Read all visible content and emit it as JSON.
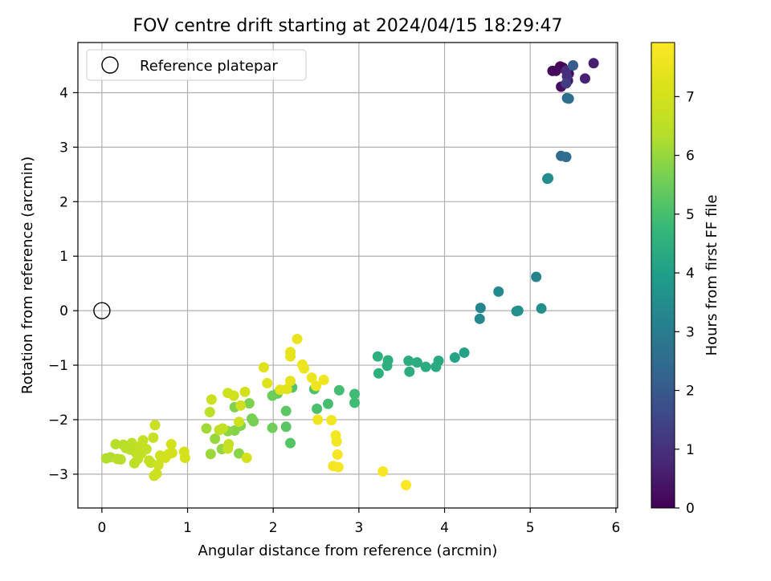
{
  "chart_data": {
    "type": "scatter",
    "title": "FOV centre drift starting at 2024/04/15 18:29:47",
    "xlabel": "Angular distance from reference (arcmin)",
    "ylabel": "Rotation from reference (arcmin)",
    "xlim": [
      -0.28,
      6.02
    ],
    "ylim": [
      -3.62,
      4.92
    ],
    "xticks": [
      "0",
      "1",
      "2",
      "3",
      "4",
      "5",
      "6"
    ],
    "yticks": [
      "−3",
      "−2",
      "−1",
      "0",
      "1",
      "2",
      "3",
      "4"
    ],
    "grid": true,
    "legend": {
      "placement": "top-left",
      "entries": [
        "Reference platepar"
      ]
    },
    "reference_point": {
      "x": 0,
      "y": 0
    },
    "colorbar": {
      "label": "Hours from first FF file",
      "range": [
        0,
        7.92
      ],
      "ticks": [
        "0",
        "1",
        "2",
        "3",
        "4",
        "5",
        "6",
        "7"
      ],
      "colormap": "viridis"
    },
    "points": [
      {
        "x": 5.35,
        "y": 4.48,
        "t": 0.05
      },
      {
        "x": 5.38,
        "y": 4.46,
        "t": 0.1
      },
      {
        "x": 5.26,
        "y": 4.4,
        "t": 0.15
      },
      {
        "x": 5.3,
        "y": 4.4,
        "t": 0.2
      },
      {
        "x": 5.45,
        "y": 4.35,
        "t": 0.25
      },
      {
        "x": 5.36,
        "y": 4.11,
        "t": 0.3
      },
      {
        "x": 5.44,
        "y": 4.22,
        "t": 0.35
      },
      {
        "x": 5.74,
        "y": 4.54,
        "t": 0.6
      },
      {
        "x": 5.64,
        "y": 4.26,
        "t": 0.7
      },
      {
        "x": 5.42,
        "y": 4.4,
        "t": 0.9
      },
      {
        "x": 5.43,
        "y": 4.3,
        "t": 1.0
      },
      {
        "x": 5.42,
        "y": 4.17,
        "t": 1.3
      },
      {
        "x": 5.5,
        "y": 4.5,
        "t": 2.1
      },
      {
        "x": 5.43,
        "y": 3.9,
        "t": 2.5
      },
      {
        "x": 5.45,
        "y": 3.89,
        "t": 2.6
      },
      {
        "x": 5.36,
        "y": 2.84,
        "t": 2.5
      },
      {
        "x": 5.42,
        "y": 2.82,
        "t": 2.55
      },
      {
        "x": 5.2,
        "y": 2.42,
        "t": 3.4
      },
      {
        "x": 5.21,
        "y": 2.43,
        "t": 3.45
      },
      {
        "x": 5.07,
        "y": 0.62,
        "t": 3.2
      },
      {
        "x": 4.63,
        "y": 0.35,
        "t": 3.4
      },
      {
        "x": 5.13,
        "y": 0.04,
        "t": 3.5
      },
      {
        "x": 4.84,
        "y": -0.01,
        "t": 3.5
      },
      {
        "x": 4.86,
        "y": 0.0,
        "t": 3.55
      },
      {
        "x": 4.42,
        "y": 0.05,
        "t": 3.3
      },
      {
        "x": 4.41,
        "y": -0.15,
        "t": 3.35
      },
      {
        "x": 4.23,
        "y": -0.77,
        "t": 4.1
      },
      {
        "x": 4.12,
        "y": -0.86,
        "t": 4.15
      },
      {
        "x": 3.93,
        "y": -0.92,
        "t": 4.3
      },
      {
        "x": 3.9,
        "y": -1.03,
        "t": 4.35
      },
      {
        "x": 3.78,
        "y": -1.03,
        "t": 4.4
      },
      {
        "x": 3.68,
        "y": -0.95,
        "t": 4.4
      },
      {
        "x": 3.58,
        "y": -0.92,
        "t": 4.45
      },
      {
        "x": 3.59,
        "y": -1.12,
        "t": 4.45
      },
      {
        "x": 3.34,
        "y": -0.91,
        "t": 4.5
      },
      {
        "x": 3.33,
        "y": -1.01,
        "t": 4.5
      },
      {
        "x": 3.22,
        "y": -0.84,
        "t": 4.5
      },
      {
        "x": 3.23,
        "y": -1.15,
        "t": 4.55
      },
      {
        "x": 2.95,
        "y": -1.53,
        "t": 4.9
      },
      {
        "x": 2.95,
        "y": -1.69,
        "t": 4.9
      },
      {
        "x": 2.77,
        "y": -1.46,
        "t": 4.95
      },
      {
        "x": 2.64,
        "y": -1.71,
        "t": 5.0
      },
      {
        "x": 2.51,
        "y": -1.8,
        "t": 5.05
      },
      {
        "x": 2.48,
        "y": -1.44,
        "t": 5.1
      },
      {
        "x": 2.22,
        "y": -1.41,
        "t": 5.15
      },
      {
        "x": 2.2,
        "y": -2.43,
        "t": 5.2
      },
      {
        "x": 2.15,
        "y": -2.13,
        "t": 5.25
      },
      {
        "x": 2.15,
        "y": -1.84,
        "t": 5.3
      },
      {
        "x": 2.05,
        "y": -1.52,
        "t": 5.4
      },
      {
        "x": 1.99,
        "y": -1.56,
        "t": 5.5
      },
      {
        "x": 1.99,
        "y": -2.15,
        "t": 5.55
      },
      {
        "x": 1.77,
        "y": -2.03,
        "t": 5.6
      },
      {
        "x": 1.75,
        "y": -1.98,
        "t": 5.65
      },
      {
        "x": 1.72,
        "y": -1.7,
        "t": 5.7
      },
      {
        "x": 1.62,
        "y": -2.11,
        "t": 5.75
      },
      {
        "x": 1.55,
        "y": -1.77,
        "t": 5.75
      },
      {
        "x": 1.55,
        "y": -2.2,
        "t": 5.8
      },
      {
        "x": 1.6,
        "y": -2.62,
        "t": 5.85
      },
      {
        "x": 1.47,
        "y": -2.21,
        "t": 5.9
      },
      {
        "x": 1.4,
        "y": -2.54,
        "t": 5.95
      },
      {
        "x": 1.32,
        "y": -2.35,
        "t": 6.0
      },
      {
        "x": 1.27,
        "y": -2.63,
        "t": 6.05
      },
      {
        "x": 1.22,
        "y": -2.16,
        "t": 6.1
      },
      {
        "x": 1.26,
        "y": -1.86,
        "t": 6.5
      },
      {
        "x": 1.28,
        "y": -1.63,
        "t": 6.8
      },
      {
        "x": 1.37,
        "y": -2.19,
        "t": 6.6
      },
      {
        "x": 1.41,
        "y": -2.16,
        "t": 6.65
      },
      {
        "x": 1.48,
        "y": -2.45,
        "t": 6.7
      },
      {
        "x": 1.47,
        "y": -2.53,
        "t": 6.75
      },
      {
        "x": 1.47,
        "y": -1.51,
        "t": 6.9
      },
      {
        "x": 1.54,
        "y": -1.56,
        "t": 6.95
      },
      {
        "x": 1.6,
        "y": -2.04,
        "t": 6.85
      },
      {
        "x": 1.62,
        "y": -1.74,
        "t": 6.9
      },
      {
        "x": 1.67,
        "y": -1.49,
        "t": 7.0
      },
      {
        "x": 1.69,
        "y": -2.7,
        "t": 7.05
      },
      {
        "x": 0.05,
        "y": -2.71,
        "t": 6.3
      },
      {
        "x": 0.1,
        "y": -2.69,
        "t": 6.3
      },
      {
        "x": 0.16,
        "y": -2.45,
        "t": 6.35
      },
      {
        "x": 0.18,
        "y": -2.72,
        "t": 6.35
      },
      {
        "x": 0.22,
        "y": -2.73,
        "t": 6.4
      },
      {
        "x": 0.25,
        "y": -2.46,
        "t": 6.4
      },
      {
        "x": 0.28,
        "y": -2.52,
        "t": 6.45
      },
      {
        "x": 0.33,
        "y": -2.55,
        "t": 6.45
      },
      {
        "x": 0.35,
        "y": -2.43,
        "t": 6.5
      },
      {
        "x": 0.38,
        "y": -2.8,
        "t": 6.5
      },
      {
        "x": 0.4,
        "y": -2.61,
        "t": 6.55
      },
      {
        "x": 0.42,
        "y": -2.72,
        "t": 6.55
      },
      {
        "x": 0.44,
        "y": -2.49,
        "t": 6.6
      },
      {
        "x": 0.46,
        "y": -2.62,
        "t": 6.6
      },
      {
        "x": 0.48,
        "y": -2.38,
        "t": 6.65
      },
      {
        "x": 0.52,
        "y": -2.54,
        "t": 6.65
      },
      {
        "x": 0.55,
        "y": -2.75,
        "t": 6.7
      },
      {
        "x": 0.57,
        "y": -2.79,
        "t": 6.7
      },
      {
        "x": 0.6,
        "y": -2.33,
        "t": 6.75
      },
      {
        "x": 0.62,
        "y": -2.1,
        "t": 6.8
      },
      {
        "x": 0.61,
        "y": -3.03,
        "t": 6.8
      },
      {
        "x": 0.64,
        "y": -2.99,
        "t": 6.85
      },
      {
        "x": 0.66,
        "y": -2.83,
        "t": 6.85
      },
      {
        "x": 0.68,
        "y": -2.66,
        "t": 6.9
      },
      {
        "x": 0.72,
        "y": -2.68,
        "t": 6.9
      },
      {
        "x": 0.74,
        "y": -2.7,
        "t": 6.95
      },
      {
        "x": 0.78,
        "y": -2.63,
        "t": 6.95
      },
      {
        "x": 0.81,
        "y": -2.45,
        "t": 7.0
      },
      {
        "x": 0.82,
        "y": -2.61,
        "t": 7.0
      },
      {
        "x": 0.96,
        "y": -2.59,
        "t": 7.05
      },
      {
        "x": 0.97,
        "y": -2.7,
        "t": 7.05
      },
      {
        "x": 1.89,
        "y": -1.04,
        "t": 7.3
      },
      {
        "x": 1.93,
        "y": -1.33,
        "t": 7.3
      },
      {
        "x": 2.08,
        "y": -1.45,
        "t": 7.35
      },
      {
        "x": 2.16,
        "y": -1.44,
        "t": 7.35
      },
      {
        "x": 2.2,
        "y": -0.76,
        "t": 7.4
      },
      {
        "x": 2.2,
        "y": -0.84,
        "t": 7.4
      },
      {
        "x": 2.2,
        "y": -1.29,
        "t": 7.45
      },
      {
        "x": 2.28,
        "y": -0.52,
        "t": 7.5
      },
      {
        "x": 2.34,
        "y": -0.99,
        "t": 7.5
      },
      {
        "x": 2.36,
        "y": -1.06,
        "t": 7.55
      },
      {
        "x": 2.45,
        "y": -1.23,
        "t": 7.55
      },
      {
        "x": 2.5,
        "y": -1.38,
        "t": 7.6
      },
      {
        "x": 2.52,
        "y": -2.0,
        "t": 7.6
      },
      {
        "x": 2.59,
        "y": -1.27,
        "t": 7.65
      },
      {
        "x": 2.68,
        "y": -2.01,
        "t": 7.65
      },
      {
        "x": 2.73,
        "y": -2.29,
        "t": 7.7
      },
      {
        "x": 2.74,
        "y": -2.4,
        "t": 7.7
      },
      {
        "x": 2.75,
        "y": -2.64,
        "t": 7.75
      },
      {
        "x": 2.7,
        "y": -2.85,
        "t": 7.75
      },
      {
        "x": 2.76,
        "y": -2.87,
        "t": 7.8
      },
      {
        "x": 3.28,
        "y": -2.95,
        "t": 7.85
      },
      {
        "x": 3.55,
        "y": -3.2,
        "t": 7.9
      }
    ]
  }
}
